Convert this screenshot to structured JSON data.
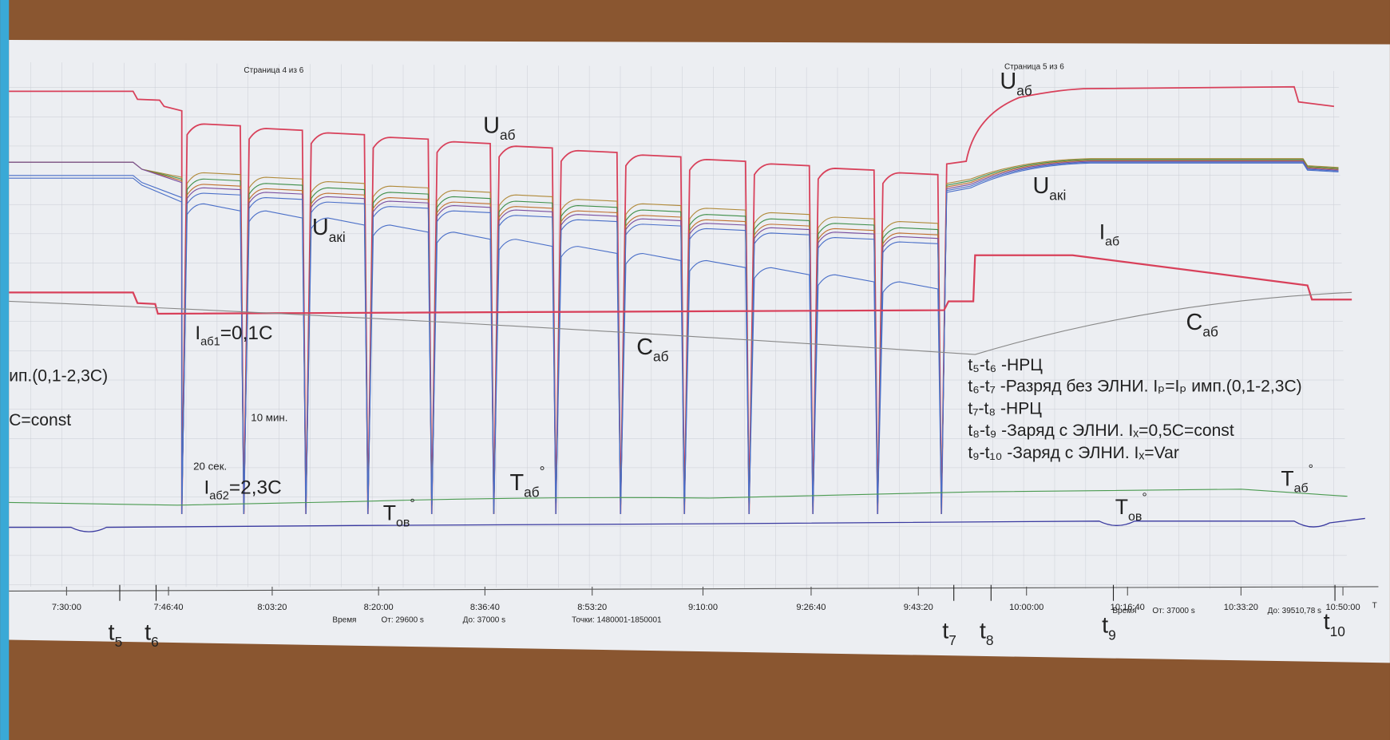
{
  "pages": [
    "Страница 4 из 6",
    "Страница 5 из 6"
  ],
  "labels": [
    {
      "main": "U",
      "sub": "аб"
    },
    {
      "main": "U",
      "sub": "аб"
    },
    {
      "main": "U",
      "sub": "акi"
    },
    {
      "main": "U",
      "sub": "акi"
    },
    {
      "main": "I",
      "sub": "аб"
    },
    {
      "main": "I",
      "sub": "аб1",
      "rest": "=0,1C"
    },
    {
      "main": "C",
      "sub": "аб"
    },
    {
      "main": "C",
      "sub": "аб"
    },
    {
      "main": "I",
      "sub": "аб2",
      "rest": "=2,3C"
    },
    {
      "main": "T",
      "sub": "аб",
      "sup": "°"
    },
    {
      "main": "T",
      "sub": "ов",
      "sup": "°"
    },
    {
      "main": "T",
      "sub": "аб",
      "sup": "°"
    },
    {
      "main": "T",
      "sub": "ов",
      "sup": "°"
    }
  ],
  "texts": [
    "10 мин.",
    "20 сек.",
    "ип.(0,1-2,3C)",
    "C=const"
  ],
  "notes": [
    "t₅-t₆ -НРЦ",
    "t₆-t₇ -Разряд без ЭЛНИ. Iₚ=Iₚ имп.(0,1-2,3C)",
    "t₇-t₈ -НРЦ",
    "t₈-t₉ -Заряд с ЭЛНИ. Iₓ=0,5C=const",
    "t₉-t₁₀ -Заряд с ЭЛНИ. Iₓ=Var"
  ],
  "time_ticks": [
    "7:30:00",
    "7:46:40",
    "8:03:20",
    "8:20:00",
    "8:36:40",
    "8:53:20",
    "9:10:00",
    "9:26:40",
    "9:43:20",
    "10:00:00",
    "10:16:40",
    "10:33:20",
    "10:50:00"
  ],
  "axis_info": [
    "Время",
    "От: 29600 s",
    "До: 37000 s",
    "Точки: 1480001-1850001",
    "Время",
    "От: 37000 s",
    "До: 39510,78 s",
    "T"
  ],
  "markers": [
    {
      "main": "t",
      "sub": "5"
    },
    {
      "main": "t",
      "sub": "6"
    },
    {
      "main": "t",
      "sub": "7"
    },
    {
      "main": "t",
      "sub": "8"
    },
    {
      "main": "t",
      "sub": "9"
    },
    {
      "main": "t",
      "sub": "10"
    }
  ]
}
